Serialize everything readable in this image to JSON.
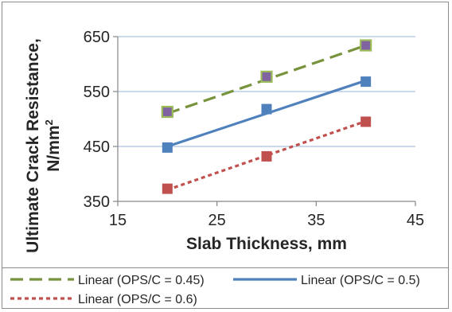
{
  "chart_data": {
    "type": "scatter",
    "xlabel": "Slab Thickness, mm",
    "ylabel_line1": "Ultimate Crack Resistance,",
    "ylabel_line2": "N/mm",
    "ylabel_superscript": "2",
    "xlim": [
      15,
      45
    ],
    "ylim": [
      350,
      650
    ],
    "xticks": [
      15,
      25,
      35,
      45
    ],
    "yticks": [
      350,
      450,
      550,
      650
    ],
    "grid": "horizontal",
    "legend_position": "bottom",
    "series": [
      {
        "name": "Linear (OPS/C = 0.45)",
        "x": [
          20,
          30,
          40
        ],
        "y": [
          513,
          577,
          634
        ],
        "trend": [
          510,
          634
        ],
        "marker_fill": "#8064a2",
        "marker_edge": "#9bbb59",
        "line_color": "#77933c",
        "line_style": "long-dash"
      },
      {
        "name": "Linear (OPS/C = 0.5)",
        "x": [
          20,
          30,
          40
        ],
        "y": [
          448,
          518,
          568
        ],
        "trend": [
          450,
          570
        ],
        "marker_fill": "#4f81bd",
        "marker_edge": "#4f81bd",
        "line_color": "#4f81bd",
        "line_style": "solid"
      },
      {
        "name": "Linear (OPS/C = 0.6)",
        "x": [
          20,
          30,
          40
        ],
        "y": [
          373,
          432,
          495
        ],
        "trend": [
          371,
          496
        ],
        "marker_fill": "#c0504d",
        "marker_edge": "#c0504d",
        "line_color": "#c0504d",
        "line_style": "short-dash"
      }
    ]
  }
}
